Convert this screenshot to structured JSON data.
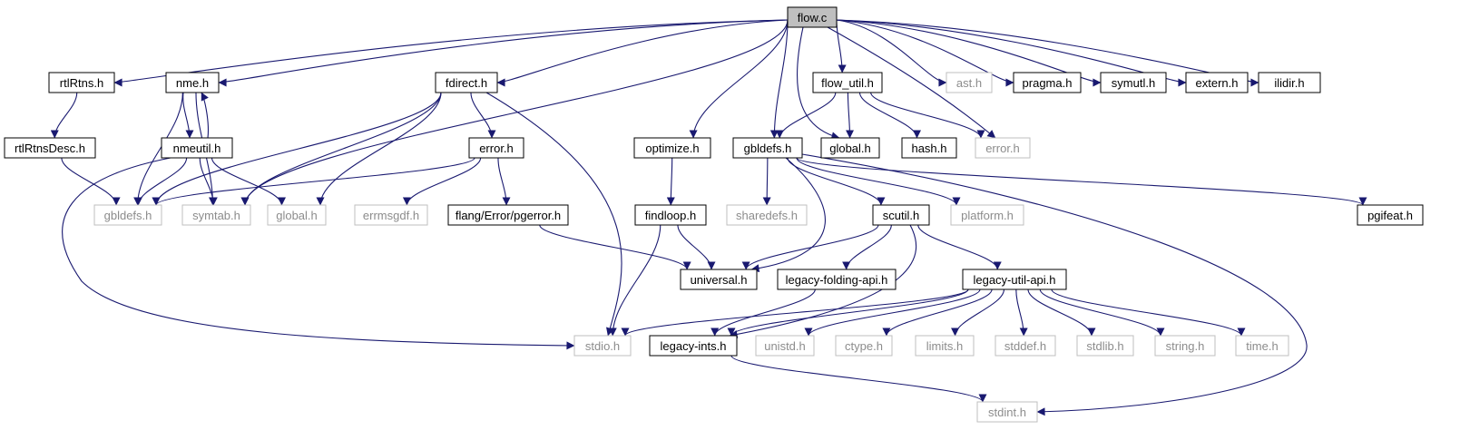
{
  "colors": {
    "edge": "#191970",
    "root_fill": "#bfbfbf",
    "documented_stroke": "#000000",
    "external_stroke": "#bfbfbf",
    "documented_text": "#000000",
    "external_text": "#8c8c8c"
  },
  "nodes": [
    {
      "id": "flow_c",
      "label": "flow.c",
      "kind": "root"
    },
    {
      "id": "rtlRtns_h",
      "label": "rtlRtns.h",
      "kind": "documented"
    },
    {
      "id": "nme_h",
      "label": "nme.h",
      "kind": "documented"
    },
    {
      "id": "fdirect_h",
      "label": "fdirect.h",
      "kind": "documented"
    },
    {
      "id": "flow_util_h",
      "label": "flow_util.h",
      "kind": "documented"
    },
    {
      "id": "ast_h",
      "label": "ast.h",
      "kind": "external"
    },
    {
      "id": "pragma_h",
      "label": "pragma.h",
      "kind": "documented"
    },
    {
      "id": "symutl_h",
      "label": "symutl.h",
      "kind": "documented"
    },
    {
      "id": "extern_h",
      "label": "extern.h",
      "kind": "documented"
    },
    {
      "id": "ilidir_h",
      "label": "ilidir.h",
      "kind": "documented"
    },
    {
      "id": "rtlRtnsDesc_h",
      "label": "rtlRtnsDesc.h",
      "kind": "documented"
    },
    {
      "id": "nmeutil_h",
      "label": "nmeutil.h",
      "kind": "documented"
    },
    {
      "id": "error_h_1",
      "label": "error.h",
      "kind": "documented"
    },
    {
      "id": "optimize_h",
      "label": "optimize.h",
      "kind": "documented"
    },
    {
      "id": "gbldefs_h_doc",
      "label": "gbldefs.h",
      "kind": "documented"
    },
    {
      "id": "global_h_doc",
      "label": "global.h",
      "kind": "documented"
    },
    {
      "id": "hash_h",
      "label": "hash.h",
      "kind": "documented"
    },
    {
      "id": "error_h_ext",
      "label": "error.h",
      "kind": "external"
    },
    {
      "id": "gbldefs_h_ext",
      "label": "gbldefs.h",
      "kind": "external"
    },
    {
      "id": "symtab_h",
      "label": "symtab.h",
      "kind": "external"
    },
    {
      "id": "global_h_ext",
      "label": "global.h",
      "kind": "external"
    },
    {
      "id": "errmsgdf_h",
      "label": "errmsgdf.h",
      "kind": "external"
    },
    {
      "id": "pgerror_h",
      "label": "flang/Error/pgerror.h",
      "kind": "documented"
    },
    {
      "id": "findloop_h",
      "label": "findloop.h",
      "kind": "documented"
    },
    {
      "id": "sharedefs_h",
      "label": "sharedefs.h",
      "kind": "external"
    },
    {
      "id": "scutil_h",
      "label": "scutil.h",
      "kind": "documented"
    },
    {
      "id": "platform_h",
      "label": "platform.h",
      "kind": "external"
    },
    {
      "id": "pgifeat_h",
      "label": "pgifeat.h",
      "kind": "documented"
    },
    {
      "id": "universal_h",
      "label": "universal.h",
      "kind": "documented"
    },
    {
      "id": "legacy_folding_api_h",
      "label": "legacy-folding-api.h",
      "kind": "documented"
    },
    {
      "id": "legacy_util_api_h",
      "label": "legacy-util-api.h",
      "kind": "documented"
    },
    {
      "id": "stdio_h",
      "label": "stdio.h",
      "kind": "external"
    },
    {
      "id": "legacy_ints_h",
      "label": "legacy-ints.h",
      "kind": "documented"
    },
    {
      "id": "unistd_h",
      "label": "unistd.h",
      "kind": "external"
    },
    {
      "id": "ctype_h",
      "label": "ctype.h",
      "kind": "external"
    },
    {
      "id": "limits_h",
      "label": "limits.h",
      "kind": "external"
    },
    {
      "id": "stddef_h",
      "label": "stddef.h",
      "kind": "external"
    },
    {
      "id": "stdlib_h",
      "label": "stdlib.h",
      "kind": "external"
    },
    {
      "id": "string_h",
      "label": "string.h",
      "kind": "external"
    },
    {
      "id": "time_h",
      "label": "time.h",
      "kind": "external"
    },
    {
      "id": "stdint_h",
      "label": "stdint.h",
      "kind": "external"
    }
  ],
  "edges": [
    [
      "flow_c",
      "rtlRtns_h"
    ],
    [
      "flow_c",
      "nme_h"
    ],
    [
      "flow_c",
      "symtab_h"
    ],
    [
      "flow_c",
      "fdirect_h"
    ],
    [
      "flow_c",
      "optimize_h"
    ],
    [
      "flow_c",
      "gbldefs_h_doc"
    ],
    [
      "flow_c",
      "global_h_doc"
    ],
    [
      "flow_c",
      "flow_util_h"
    ],
    [
      "flow_c",
      "error_h_ext"
    ],
    [
      "flow_c",
      "ast_h"
    ],
    [
      "flow_c",
      "pragma_h"
    ],
    [
      "flow_c",
      "symutl_h"
    ],
    [
      "flow_c",
      "extern_h"
    ],
    [
      "flow_c",
      "ilidir_h"
    ],
    [
      "rtlRtns_h",
      "rtlRtnsDesc_h"
    ],
    [
      "rtlRtnsDesc_h",
      "gbldefs_h_ext"
    ],
    [
      "nme_h",
      "nmeutil_h"
    ],
    [
      "nmeutil_h",
      "nme_h"
    ],
    [
      "nme_h",
      "gbldefs_h_ext"
    ],
    [
      "nme_h",
      "symtab_h"
    ],
    [
      "nmeutil_h",
      "gbldefs_h_ext"
    ],
    [
      "nmeutil_h",
      "symtab_h"
    ],
    [
      "nmeutil_h",
      "global_h_ext"
    ],
    [
      "nmeutil_h",
      "stdio_h"
    ],
    [
      "fdirect_h",
      "gbldefs_h_ext"
    ],
    [
      "fdirect_h",
      "symtab_h"
    ],
    [
      "fdirect_h",
      "global_h_ext"
    ],
    [
      "fdirect_h",
      "error_h_1"
    ],
    [
      "fdirect_h",
      "stdio_h"
    ],
    [
      "error_h_1",
      "gbldefs_h_ext"
    ],
    [
      "error_h_1",
      "errmsgdf_h"
    ],
    [
      "error_h_1",
      "pgerror_h"
    ],
    [
      "pgerror_h",
      "universal_h"
    ],
    [
      "optimize_h",
      "findloop_h"
    ],
    [
      "findloop_h",
      "universal_h"
    ],
    [
      "findloop_h",
      "stdio_h"
    ],
    [
      "flow_util_h",
      "gbldefs_h_doc"
    ],
    [
      "flow_util_h",
      "global_h_doc"
    ],
    [
      "flow_util_h",
      "hash_h"
    ],
    [
      "flow_util_h",
      "error_h_ext"
    ],
    [
      "gbldefs_h_doc",
      "sharedefs_h"
    ],
    [
      "gbldefs_h_doc",
      "universal_h"
    ],
    [
      "gbldefs_h_doc",
      "scutil_h"
    ],
    [
      "gbldefs_h_doc",
      "platform_h"
    ],
    [
      "gbldefs_h_doc",
      "pgifeat_h"
    ],
    [
      "gbldefs_h_doc",
      "stdint_h"
    ],
    [
      "scutil_h",
      "universal_h"
    ],
    [
      "scutil_h",
      "legacy_folding_api_h"
    ],
    [
      "scutil_h",
      "legacy_util_api_h"
    ],
    [
      "scutil_h",
      "legacy_ints_h"
    ],
    [
      "legacy_folding_api_h",
      "legacy_ints_h"
    ],
    [
      "legacy_util_api_h",
      "stdio_h"
    ],
    [
      "legacy_util_api_h",
      "legacy_ints_h"
    ],
    [
      "legacy_util_api_h",
      "unistd_h"
    ],
    [
      "legacy_util_api_h",
      "ctype_h"
    ],
    [
      "legacy_util_api_h",
      "limits_h"
    ],
    [
      "legacy_util_api_h",
      "stddef_h"
    ],
    [
      "legacy_util_api_h",
      "stdlib_h"
    ],
    [
      "legacy_util_api_h",
      "string_h"
    ],
    [
      "legacy_util_api_h",
      "time_h"
    ],
    [
      "legacy_ints_h",
      "stdint_h"
    ]
  ]
}
